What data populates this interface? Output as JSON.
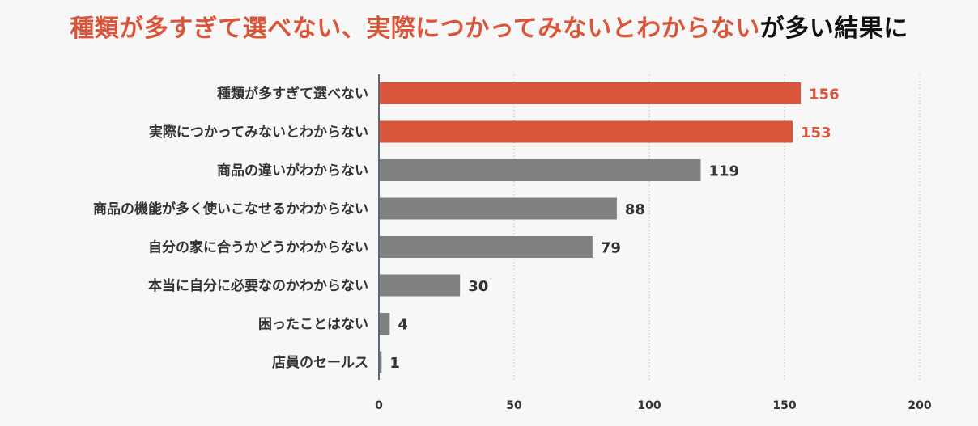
{
  "title": {
    "segments": [
      {
        "text": "種類が多すぎて選べない、実際につかってみないとわからない",
        "color": "#d9553a"
      },
      {
        "text": "が多い結果に",
        "color": "#111111"
      }
    ]
  },
  "chart_data": {
    "type": "bar",
    "orientation": "horizontal",
    "categories": [
      "種類が多すぎて選べない",
      "実際につかってみないとわからない",
      "商品の違いがわからない",
      "商品の機能が多く使いこなせるかわからない",
      "自分の家に合うかどうかわからない",
      "本当に自分に必要なのかわからない",
      "困ったことはない",
      "店員のセールス"
    ],
    "values": [
      156,
      153,
      119,
      88,
      79,
      30,
      4,
      1
    ],
    "value_labels": [
      "156",
      "153",
      "119",
      "88",
      "79",
      "30",
      "4",
      "1"
    ],
    "highlighted": [
      true,
      true,
      false,
      false,
      false,
      false,
      false,
      false
    ],
    "xlim": [
      0,
      200
    ],
    "xticks": [
      0,
      50,
      100,
      150,
      200
    ],
    "xtick_labels": [
      "0",
      "50",
      "100",
      "150",
      "200"
    ],
    "grid": "vertical",
    "colors": {
      "highlight": "#d9553a",
      "normal": "#808080",
      "highlight_text": "#d9553a",
      "normal_text": "#333333",
      "grid": "#bbbbbb",
      "axis": "#5a6a7a"
    }
  }
}
